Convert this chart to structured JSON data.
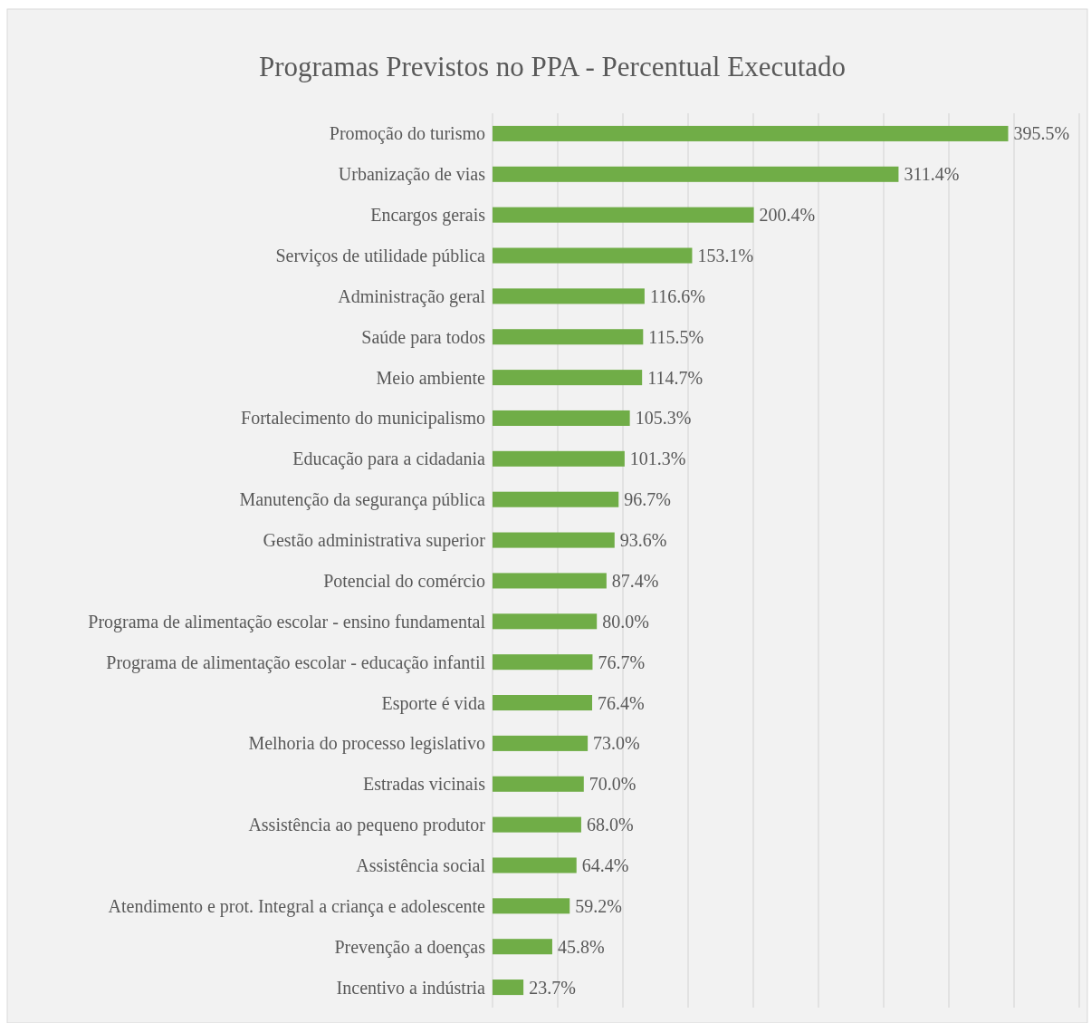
{
  "chart_data": {
    "type": "bar",
    "orientation": "horizontal",
    "title": "Programas Previstos no PPA - Percentual Executado",
    "categories": [
      "Promoção do turismo",
      "Urbanização de vias",
      "Encargos gerais",
      "Serviços de utilidade pública",
      "Administração geral",
      "Saúde para todos",
      "Meio ambiente",
      "Fortalecimento do municipalismo",
      "Educação para a cidadania",
      "Manutenção da segurança pública",
      "Gestão administrativa superior",
      "Potencial do comércio",
      "Programa de alimentação escolar - ensino fundamental",
      "Programa de alimentação escolar - educação infantil",
      "Esporte é vida",
      "Melhoria do processo legislativo",
      "Estradas vicinais",
      "Assistência ao pequeno produtor",
      "Assistência social",
      "Atendimento e prot. Integral a criança e adolescente",
      "Prevenção a doenças",
      "Incentivo a indústria"
    ],
    "values": [
      395.5,
      311.4,
      200.4,
      153.1,
      116.6,
      115.5,
      114.7,
      105.3,
      101.3,
      96.7,
      93.6,
      87.4,
      80.0,
      76.7,
      76.4,
      73.0,
      70.0,
      68.0,
      64.4,
      59.2,
      45.8,
      23.7
    ],
    "value_labels": [
      "395.5%",
      "311.4%",
      "200.4%",
      "153.1%",
      "116.6%",
      "115.5%",
      "114.7%",
      "105.3%",
      "101.3%",
      "96.7%",
      "93.6%",
      "87.4%",
      "80.0%",
      "76.7%",
      "76.4%",
      "73.0%",
      "70.0%",
      "68.0%",
      "64.4%",
      "59.2%",
      "45.8%",
      "23.7%"
    ],
    "color": "#70ad47",
    "xlim": [
      0,
      450
    ],
    "xticks": [
      {
        "value": 0,
        "label": null
      },
      {
        "value": 50,
        "label": null
      },
      {
        "value": 100,
        "label": null
      },
      {
        "value": 150,
        "label": null
      },
      {
        "value": 200,
        "label": null
      },
      {
        "value": 250,
        "label": null
      },
      {
        "value": 300,
        "label": null
      },
      {
        "value": 350,
        "label": null
      },
      {
        "value": 400,
        "label": null
      },
      {
        "value": 450,
        "label": null
      }
    ],
    "grid": "x",
    "tick_labels": "y"
  }
}
